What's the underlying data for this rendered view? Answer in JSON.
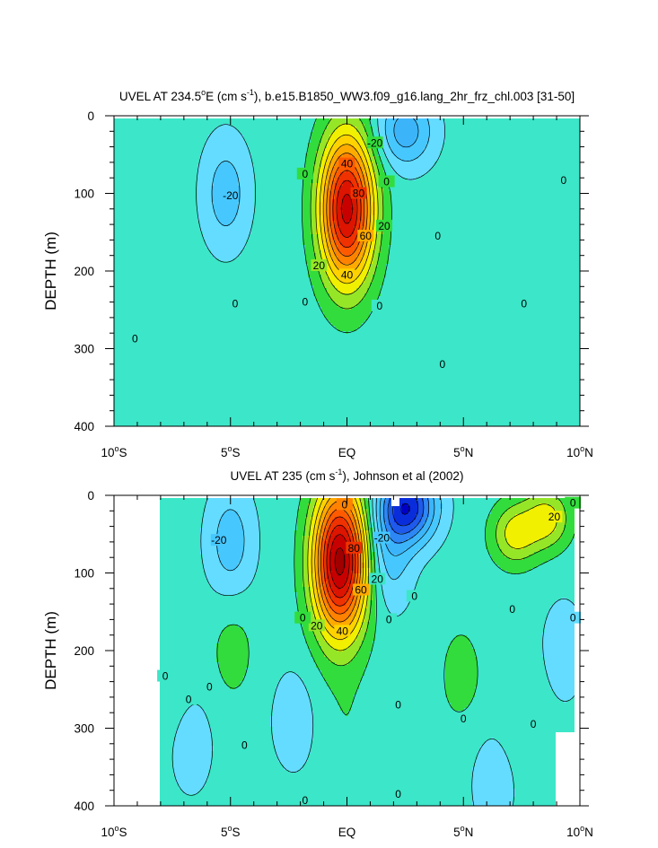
{
  "chart_data": [
    {
      "type": "contour",
      "title_parts": [
        "UVEL AT 234.5",
        "o",
        "E (cm s",
        "-1",
        "), b.e15.B1850_WW3.f09_g16.lang_2hr_frz_chl.003 [31-50]"
      ],
      "ylabel": "DEPTH (m)",
      "xlim": [
        -10,
        10
      ],
      "ylim": [
        0,
        400
      ],
      "x_ticks": [
        {
          "v": -10,
          "num": "10",
          "deg": "o",
          "hem": "S"
        },
        {
          "v": -5,
          "num": "5",
          "deg": "o",
          "hem": "S"
        },
        {
          "v": 0,
          "num": "EQ",
          "deg": "",
          "hem": ""
        },
        {
          "v": 5,
          "num": "5",
          "deg": "o",
          "hem": "N"
        },
        {
          "v": 10,
          "num": "10",
          "deg": "o",
          "hem": "N"
        }
      ],
      "y_ticks": [
        0,
        100,
        200,
        300,
        400
      ],
      "y_tick_labels": [
        "0",
        "100",
        "200",
        "300",
        "400"
      ],
      "contour_interval": 10,
      "data_domain": {
        "x": [
          -10,
          10
        ],
        "depth": [
          5,
          400
        ]
      },
      "features": [
        {
          "kind": "eastward jet core",
          "lat": 0.0,
          "depth": 120,
          "max_u": 100
        },
        {
          "kind": "westward SEC",
          "lat": 2.5,
          "depth": 20,
          "min_u": -30
        },
        {
          "kind": "westward",
          "lat": -5.2,
          "depth": 100,
          "min_u": -20
        },
        {
          "kind": "eastward",
          "lat": -9.5,
          "depth": 60,
          "max_u": 5
        },
        {
          "kind": "eastward",
          "lat": 6.5,
          "depth": 70,
          "max_u": 5
        },
        {
          "kind": "eastward",
          "lat": -3.5,
          "depth": 330,
          "max_u": 5
        },
        {
          "kind": "eastward",
          "lat": 4.2,
          "depth": 330,
          "max_u": 5
        }
      ],
      "contour_labels": [
        {
          "text": "-20",
          "lat": 1.2,
          "depth": 35
        },
        {
          "text": "-20",
          "lat": -5.0,
          "depth": 103
        },
        {
          "text": "0",
          "lat": -1.8,
          "depth": 75
        },
        {
          "text": "0",
          "lat": 1.7,
          "depth": 85
        },
        {
          "text": "40",
          "lat": 0.0,
          "depth": 62
        },
        {
          "text": "80",
          "lat": 0.5,
          "depth": 100
        },
        {
          "text": "60",
          "lat": 0.8,
          "depth": 155
        },
        {
          "text": "20",
          "lat": 1.6,
          "depth": 142
        },
        {
          "text": "20",
          "lat": -1.2,
          "depth": 193
        },
        {
          "text": "40",
          "lat": 0.0,
          "depth": 205
        },
        {
          "text": "0",
          "lat": 3.9,
          "depth": 155
        },
        {
          "text": "0",
          "lat": 9.3,
          "depth": 83
        },
        {
          "text": "0",
          "lat": -1.8,
          "depth": 240
        },
        {
          "text": "0",
          "lat": -4.8,
          "depth": 242
        },
        {
          "text": "0",
          "lat": 1.4,
          "depth": 245
        },
        {
          "text": "0",
          "lat": 7.6,
          "depth": 242
        },
        {
          "text": "0",
          "lat": -9.1,
          "depth": 287
        },
        {
          "text": "0",
          "lat": 4.1,
          "depth": 320
        }
      ]
    },
    {
      "type": "contour",
      "title_parts": [
        "UVEL AT 235 (cm s",
        "-1",
        "), Johnson et al (2002)"
      ],
      "ylabel": "DEPTH (m)",
      "xlim": [
        -10,
        10
      ],
      "ylim": [
        0,
        400
      ],
      "x_ticks": [
        {
          "v": -10,
          "num": "10",
          "deg": "o",
          "hem": "S"
        },
        {
          "v": -5,
          "num": "5",
          "deg": "o",
          "hem": "S"
        },
        {
          "v": 0,
          "num": "EQ",
          "deg": "",
          "hem": ""
        },
        {
          "v": 5,
          "num": "5",
          "deg": "o",
          "hem": "N"
        },
        {
          "v": 10,
          "num": "10",
          "deg": "o",
          "hem": "N"
        }
      ],
      "y_ticks": [
        0,
        100,
        200,
        300,
        400
      ],
      "y_tick_labels": [
        "0",
        "100",
        "200",
        "300",
        "400"
      ],
      "contour_interval": 10,
      "data_domain": {
        "x": [
          -8,
          9.8
        ],
        "depth": [
          5,
          400
        ]
      },
      "features": [
        {
          "kind": "eastward jet core",
          "lat": -0.3,
          "depth": 85,
          "max_u": 110
        },
        {
          "kind": "westward SEC",
          "lat": 2.6,
          "depth": 15,
          "min_u": -60
        },
        {
          "kind": "westward",
          "lat": -5.0,
          "depth": 60,
          "min_u": -20
        },
        {
          "kind": "westward",
          "lat": 1.8,
          "depth": 75,
          "min_u": -20
        },
        {
          "kind": "eastward NECC",
          "lat": 7.2,
          "depth": 50,
          "max_u": 30
        },
        {
          "kind": "eastward NECC",
          "lat": 8.6,
          "depth": 30,
          "max_u": 30
        },
        {
          "kind": "eastward",
          "lat": -4.9,
          "depth": 200,
          "max_u": 10
        },
        {
          "kind": "eastward",
          "lat": 4.9,
          "depth": 230,
          "max_u": 10
        },
        {
          "kind": "eastward",
          "lat": -7.6,
          "depth": 250,
          "max_u": 5
        },
        {
          "kind": "eastward",
          "lat": 7.5,
          "depth": 280,
          "max_u": 5
        },
        {
          "kind": "eastward",
          "lat": 0.0,
          "depth": 300,
          "max_u": 5
        },
        {
          "kind": "eastward",
          "lat": 3.2,
          "depth": 350,
          "max_u": 5
        },
        {
          "kind": "westward",
          "lat": -2.3,
          "depth": 290,
          "min_u": -10
        },
        {
          "kind": "westward",
          "lat": -6.7,
          "depth": 320,
          "min_u": -10
        },
        {
          "kind": "westward",
          "lat": 6.3,
          "depth": 370,
          "min_u": -10
        },
        {
          "kind": "westward",
          "lat": 9.3,
          "depth": 200,
          "min_u": -10
        }
      ],
      "masked": [
        {
          "lat": [
            -10,
            -8
          ],
          "depth": [
            0,
            400
          ]
        },
        {
          "lat": [
            1.9,
            2.3
          ],
          "depth": [
            0,
            15
          ]
        },
        {
          "lat": [
            9.0,
            10
          ],
          "depth": [
            305,
            400
          ]
        }
      ],
      "contour_labels": [
        {
          "text": "0",
          "lat": -0.1,
          "depth": 12
        },
        {
          "text": "-20",
          "lat": -5.5,
          "depth": 58
        },
        {
          "text": "-20",
          "lat": 1.5,
          "depth": 55
        },
        {
          "text": "80",
          "lat": 0.3,
          "depth": 68
        },
        {
          "text": "60",
          "lat": 0.6,
          "depth": 122
        },
        {
          "text": "20",
          "lat": 1.3,
          "depth": 108
        },
        {
          "text": "20",
          "lat": -1.3,
          "depth": 168
        },
        {
          "text": "40",
          "lat": -0.2,
          "depth": 175
        },
        {
          "text": "0",
          "lat": 2.9,
          "depth": 130
        },
        {
          "text": "0",
          "lat": -1.9,
          "depth": 158
        },
        {
          "text": "0",
          "lat": 1.8,
          "depth": 160
        },
        {
          "text": "0",
          "lat": 7.1,
          "depth": 147
        },
        {
          "text": "0",
          "lat": 9.7,
          "depth": 158
        },
        {
          "text": "20",
          "lat": 8.9,
          "depth": 28
        },
        {
          "text": "0",
          "lat": 9.7,
          "depth": 10
        },
        {
          "text": "0",
          "lat": -7.8,
          "depth": 233
        },
        {
          "text": "0",
          "lat": -5.9,
          "depth": 247
        },
        {
          "text": "0",
          "lat": -6.8,
          "depth": 263
        },
        {
          "text": "0",
          "lat": 2.2,
          "depth": 270
        },
        {
          "text": "0",
          "lat": 5.0,
          "depth": 288
        },
        {
          "text": "0",
          "lat": 8.0,
          "depth": 295
        },
        {
          "text": "0",
          "lat": -4.4,
          "depth": 322
        },
        {
          "text": "0",
          "lat": 2.2,
          "depth": 385
        },
        {
          "text": "0",
          "lat": -1.8,
          "depth": 393
        }
      ]
    }
  ],
  "colors": {
    "levels": [
      -70,
      -60,
      -50,
      -40,
      -30,
      -20,
      -10,
      0,
      10,
      20,
      30,
      40,
      50,
      60,
      70,
      80,
      90,
      100
    ],
    "fills": [
      "#0000c8",
      "#0a2ddc",
      "#1e5aeb",
      "#2d87f5",
      "#3cb4fa",
      "#46c8ff",
      "#64dcff",
      "#3ce6c8",
      "#32dc3c",
      "#96e628",
      "#f0f000",
      "#ffd200",
      "#ffaa00",
      "#ff8200",
      "#ff5a00",
      "#f03200",
      "#dc1400",
      "#c80000",
      "#a00000"
    ]
  }
}
